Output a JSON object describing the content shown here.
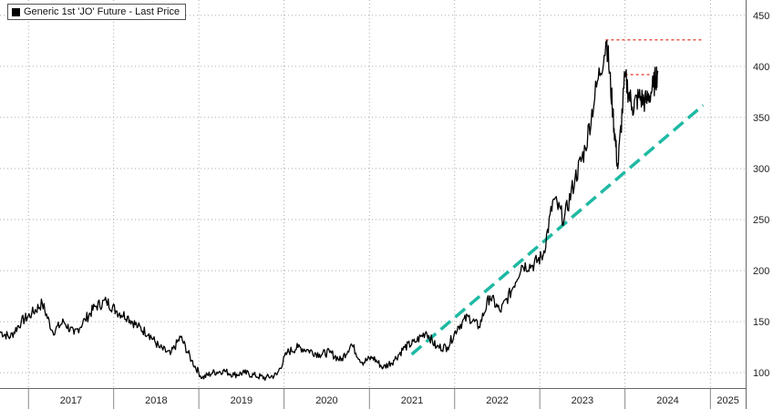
{
  "legend": {
    "label": "Generic 1st 'JO' Future - Last Price"
  },
  "colors": {
    "price": "#000000",
    "trend": "#1fb9a3",
    "resistance": "#e8584a",
    "grid": "#aaaaaa"
  },
  "chart_data": {
    "type": "line",
    "title": "",
    "xlabel": "",
    "ylabel": "",
    "ylim": [
      85,
      465
    ],
    "xlim": [
      "2016-09-01",
      "2025-06-01"
    ],
    "yticks": [
      100,
      150,
      200,
      250,
      300,
      350,
      400,
      450
    ],
    "xtick_labels": [
      "2017",
      "2018",
      "2019",
      "2020",
      "2021",
      "2022",
      "2023",
      "2024",
      "2025"
    ],
    "grid": true,
    "legend_position": "top-left",
    "series": [
      {
        "name": "Generic 1st 'JO' Future - Last Price",
        "x": [
          "2016-09-01",
          "2016-10-15",
          "2016-12-01",
          "2017-01-15",
          "2017-03-01",
          "2017-04-15",
          "2017-06-01",
          "2017-07-15",
          "2017-09-01",
          "2017-10-15",
          "2017-12-01",
          "2018-01-15",
          "2018-03-01",
          "2018-04-15",
          "2018-06-01",
          "2018-07-15",
          "2018-09-01",
          "2018-10-15",
          "2018-12-01",
          "2019-01-15",
          "2019-03-01",
          "2019-04-15",
          "2019-06-01",
          "2019-07-15",
          "2019-09-01",
          "2019-10-15",
          "2019-12-01",
          "2020-01-15",
          "2020-03-01",
          "2020-04-15",
          "2020-06-01",
          "2020-07-15",
          "2020-09-01",
          "2020-10-15",
          "2020-12-01",
          "2021-01-15",
          "2021-03-01",
          "2021-04-15",
          "2021-06-01",
          "2021-07-15",
          "2021-09-01",
          "2021-10-15",
          "2021-12-01",
          "2022-01-15",
          "2022-03-01",
          "2022-04-15",
          "2022-06-01",
          "2022-07-15",
          "2022-09-01",
          "2022-10-15",
          "2022-12-01",
          "2023-01-15",
          "2023-03-01",
          "2023-04-15",
          "2023-06-01",
          "2023-07-15",
          "2023-09-01",
          "2023-10-15",
          "2023-11-10",
          "2023-12-01",
          "2024-01-01",
          "2024-02-01",
          "2024-03-01",
          "2024-04-01",
          "2024-05-01",
          "2024-05-20"
        ],
        "values": [
          140,
          135,
          150,
          158,
          168,
          140,
          150,
          138,
          152,
          165,
          170,
          160,
          155,
          145,
          138,
          125,
          118,
          135,
          112,
          95,
          100,
          102,
          98,
          100,
          97,
          95,
          98,
          120,
          125,
          122,
          118,
          120,
          112,
          128,
          110,
          115,
          105,
          112,
          125,
          130,
          140,
          125,
          125,
          145,
          155,
          145,
          175,
          160,
          180,
          205,
          205,
          215,
          270,
          250,
          290,
          320,
          380,
          425,
          355,
          300,
          390,
          360,
          370,
          365,
          380,
          395
        ]
      }
    ],
    "annotations": [
      {
        "type": "trendline",
        "from": [
          "2021-07-01",
          118
        ],
        "to": [
          "2024-12-01",
          362
        ]
      },
      {
        "type": "resistance",
        "from": [
          "2023-10-10",
          426
        ],
        "to": [
          "2024-12-01",
          426
        ]
      },
      {
        "type": "resistance",
        "from": [
          "2024-01-01",
          392
        ],
        "to": [
          "2024-04-15",
          392
        ]
      }
    ]
  }
}
